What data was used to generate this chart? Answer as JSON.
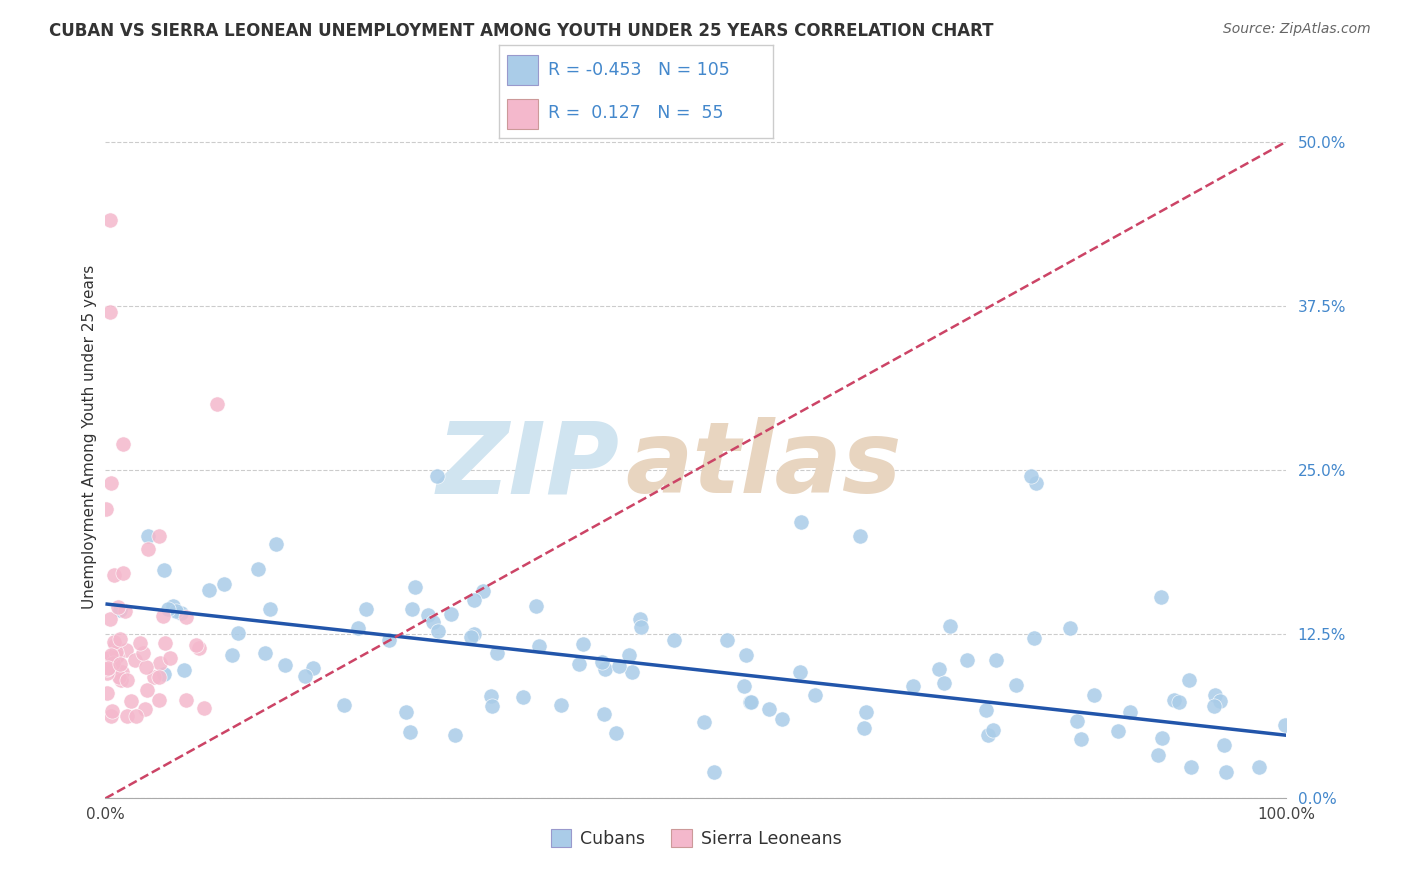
{
  "title": "CUBAN VS SIERRA LEONEAN UNEMPLOYMENT AMONG YOUTH UNDER 25 YEARS CORRELATION CHART",
  "source": "Source: ZipAtlas.com",
  "ylabel": "Unemployment Among Youth under 25 years",
  "cubans_R": -0.453,
  "cubans_N": 105,
  "sierraleoneans_R": 0.127,
  "sierraleoneans_N": 55,
  "blue_color": "#aacce8",
  "pink_color": "#f4b8cc",
  "trend_blue_color": "#2255aa",
  "trend_pink_color": "#cc4466",
  "watermark_zip_color": "#d0e4f0",
  "watermark_atlas_color": "#e8d5c0",
  "background": "#ffffff",
  "xlim": [
    0.0,
    1.0
  ],
  "ylim": [
    0.0,
    0.55
  ],
  "ytick_vals": [
    0.0,
    0.125,
    0.25,
    0.375,
    0.5
  ],
  "xtick_left_label": "0.0%",
  "xtick_right_label": "100.0%",
  "title_fontsize": 12,
  "source_fontsize": 10,
  "tick_fontsize": 11,
  "legend_fontsize": 13,
  "cu_trend_x0": 0.0,
  "cu_trend_y0": 0.148,
  "cu_trend_x1": 1.0,
  "cu_trend_y1": 0.048,
  "sl_trend_x0": 0.0,
  "sl_trend_y0": 0.0,
  "sl_trend_x1": 1.0,
  "sl_trend_y1": 0.5
}
